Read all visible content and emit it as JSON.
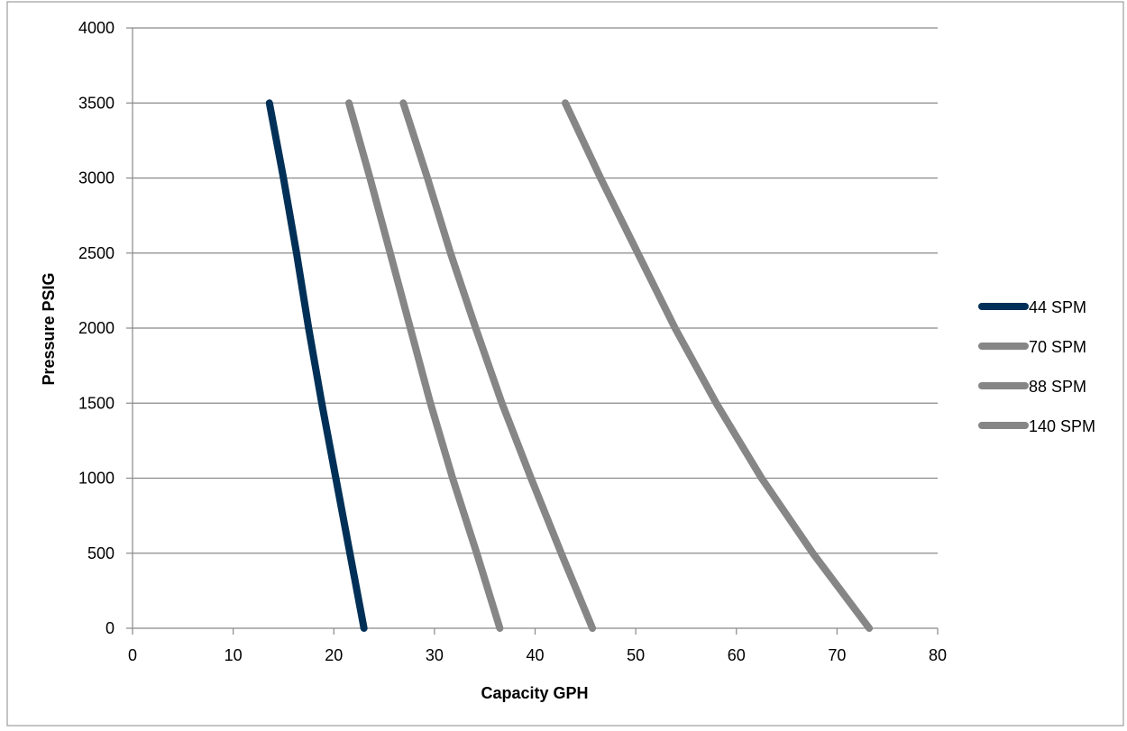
{
  "chart_data": {
    "type": "line",
    "title": "",
    "xlabel": "Capacity GPH",
    "ylabel": "Pressure PSIG",
    "xlim": [
      0,
      80
    ],
    "ylim": [
      0,
      4000
    ],
    "x_ticks": [
      "0",
      "10",
      "20",
      "30",
      "40",
      "50",
      "60",
      "70",
      "80"
    ],
    "y_ticks": [
      "0",
      "500",
      "1000",
      "1500",
      "2000",
      "2500",
      "3000",
      "3500",
      "4000"
    ],
    "grid": "horizontal",
    "legend_position": "right",
    "series": [
      {
        "name": "44 SPM",
        "color": "#003057",
        "points": [
          [
            23.0,
            0
          ],
          [
            21.6,
            500
          ],
          [
            20.2,
            1000
          ],
          [
            18.8,
            1500
          ],
          [
            17.5,
            2000
          ],
          [
            16.3,
            2500
          ],
          [
            15.0,
            3000
          ],
          [
            13.6,
            3500
          ]
        ]
      },
      {
        "name": "70 SPM",
        "color": "#868686",
        "points": [
          [
            36.5,
            0
          ],
          [
            34.2,
            500
          ],
          [
            31.8,
            1000
          ],
          [
            29.6,
            1500
          ],
          [
            27.6,
            2000
          ],
          [
            25.6,
            2500
          ],
          [
            23.6,
            3000
          ],
          [
            21.5,
            3500
          ]
        ]
      },
      {
        "name": "88 SPM",
        "color": "#868686",
        "points": [
          [
            45.7,
            0
          ],
          [
            42.6,
            500
          ],
          [
            39.6,
            1000
          ],
          [
            36.7,
            1500
          ],
          [
            34.1,
            2000
          ],
          [
            31.6,
            2500
          ],
          [
            29.3,
            3000
          ],
          [
            26.9,
            3500
          ]
        ]
      },
      {
        "name": "140 SPM",
        "color": "#868686",
        "points": [
          [
            73.2,
            0
          ],
          [
            67.6,
            500
          ],
          [
            62.5,
            1000
          ],
          [
            58.0,
            1500
          ],
          [
            53.9,
            2000
          ],
          [
            50.2,
            2500
          ],
          [
            46.5,
            3000
          ],
          [
            43.0,
            3500
          ]
        ]
      }
    ]
  }
}
